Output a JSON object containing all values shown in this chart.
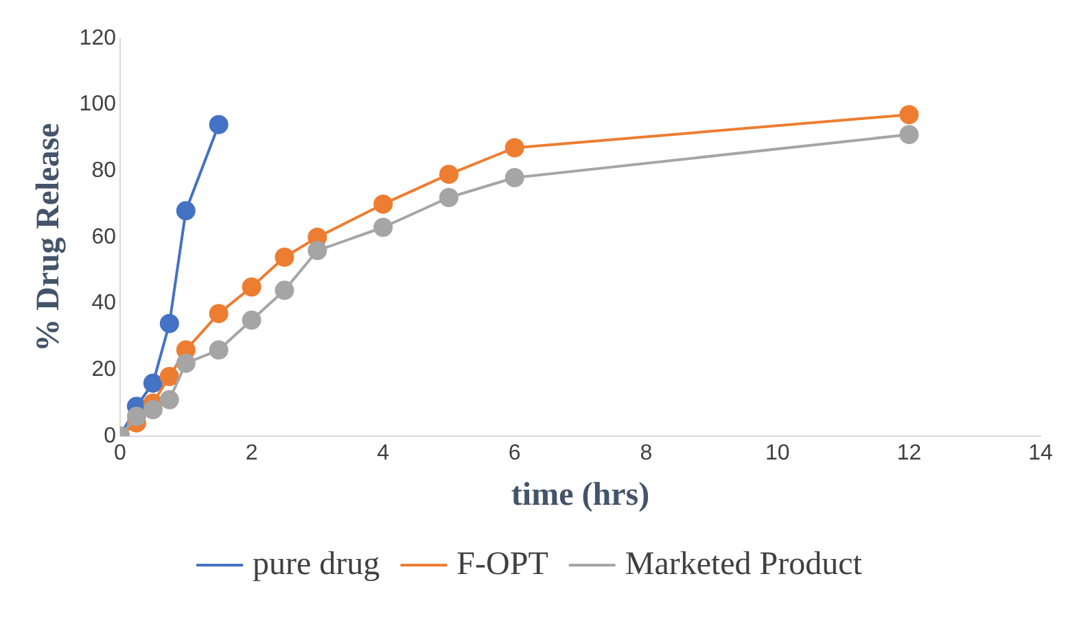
{
  "chart_data": {
    "type": "line",
    "xlabel": "time (hrs)",
    "ylabel": "% Drug Release",
    "xlim": [
      0,
      14
    ],
    "xticks": [
      0,
      2,
      4,
      6,
      8,
      10,
      12,
      14
    ],
    "ylim": [
      0,
      120
    ],
    "yticks": [
      0,
      20,
      40,
      60,
      80,
      100,
      120
    ],
    "grid": false,
    "legend": "bottom",
    "marker": "circle",
    "line_style": "solid",
    "series": [
      {
        "name": "pure drug",
        "color": "#4472c4",
        "x": [
          0,
          0.25,
          0.5,
          0.75,
          1,
          1.5
        ],
        "values": [
          0,
          9,
          16,
          34,
          68,
          94
        ]
      },
      {
        "name": "F-OPT",
        "color": "#ed7d31",
        "x": [
          0,
          0.25,
          0.5,
          0.75,
          1,
          1.5,
          2,
          2.5,
          3,
          4,
          5,
          6,
          12
        ],
        "values": [
          0,
          4,
          10,
          18,
          26,
          37,
          45,
          54,
          60,
          70,
          79,
          87,
          97
        ]
      },
      {
        "name": "Marketed Product",
        "color": "#a5a5a5",
        "x": [
          0,
          0.25,
          0.5,
          0.75,
          1,
          1.5,
          2,
          2.5,
          3,
          4,
          5,
          6,
          12
        ],
        "values": [
          0,
          6,
          8,
          11,
          22,
          26,
          35,
          44,
          56,
          63,
          72,
          78,
          91
        ]
      }
    ]
  }
}
